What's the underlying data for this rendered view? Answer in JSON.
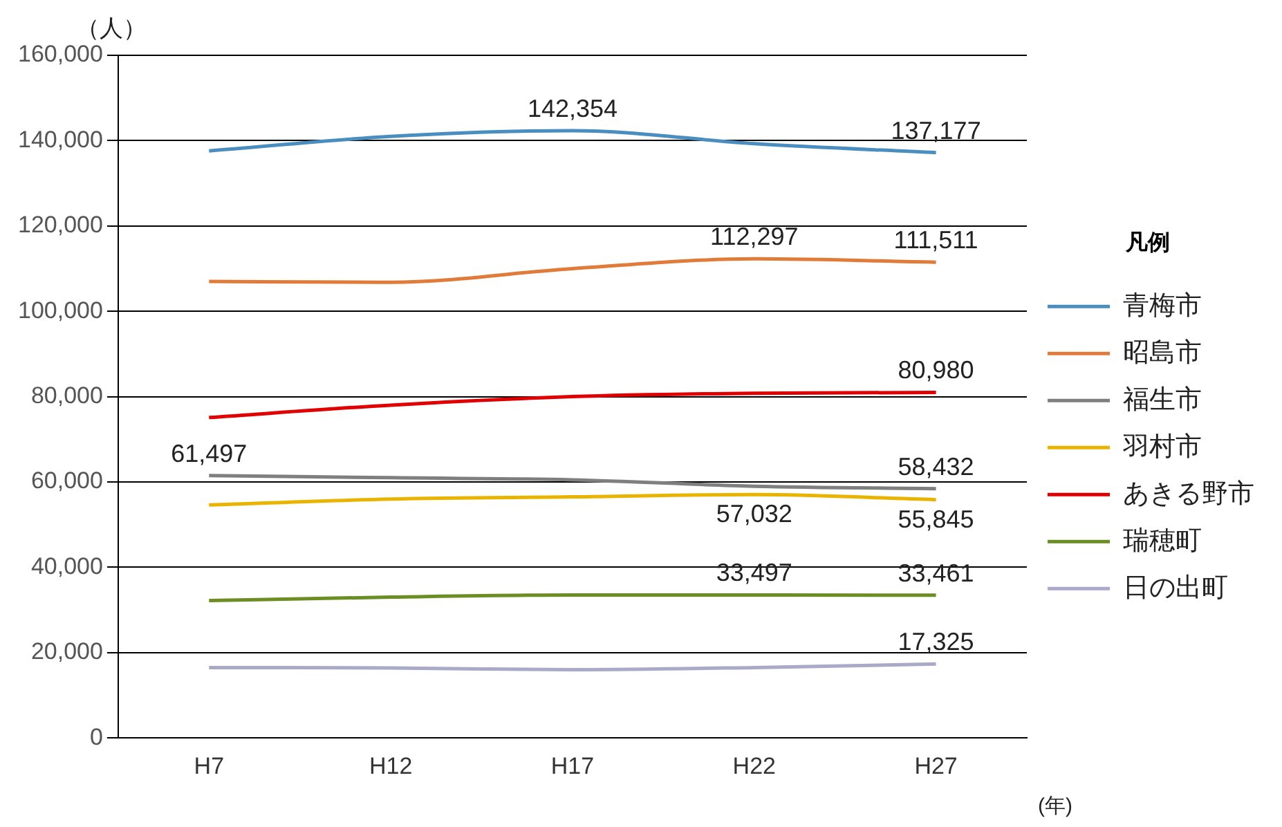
{
  "chart_data": {
    "type": "line",
    "ylabel": "（人）",
    "xlabel": "(年)",
    "legend_title": "凡例",
    "legend": "right",
    "grid": "y",
    "categories": [
      "H7",
      "H12",
      "H17",
      "H22",
      "H27"
    ],
    "ylim": [
      0,
      160000
    ],
    "yticks": [
      {
        "value": 0,
        "label": "0"
      },
      {
        "value": 20000,
        "label": "20,000"
      },
      {
        "value": 40000,
        "label": "40,000"
      },
      {
        "value": 60000,
        "label": "60,000"
      },
      {
        "value": 80000,
        "label": "80,000"
      },
      {
        "value": 100000,
        "label": "100,000"
      },
      {
        "value": 120000,
        "label": "120,000"
      },
      {
        "value": 140000,
        "label": "140,000"
      },
      {
        "value": 160000,
        "label": "160,000"
      }
    ],
    "series": [
      {
        "name": "青梅市",
        "color": "#4a8ebf",
        "values": [
          137600,
          141000,
          142354,
          139300,
          137177
        ],
        "value_labels": [
          null,
          null,
          "142,354",
          null,
          "137,177"
        ]
      },
      {
        "name": "昭島市",
        "color": "#e07b39",
        "values": [
          107000,
          106800,
          110000,
          112297,
          111511
        ],
        "value_labels": [
          null,
          null,
          null,
          "112,297",
          "111,511"
        ]
      },
      {
        "name": "福生市",
        "color": "#7f7f7f",
        "values": [
          61497,
          61000,
          60500,
          59000,
          58432
        ],
        "value_labels": [
          "61,497",
          null,
          null,
          null,
          "58,432"
        ]
      },
      {
        "name": "羽村市",
        "color": "#e8b400",
        "values": [
          54600,
          56000,
          56500,
          57032,
          55845
        ],
        "value_labels": [
          null,
          null,
          null,
          "57,032",
          "55,845"
        ]
      },
      {
        "name": "あきる野市",
        "color": "#e00000",
        "values": [
          75100,
          78000,
          80000,
          80800,
          80980
        ],
        "value_labels": [
          null,
          null,
          null,
          null,
          "80,980"
        ]
      },
      {
        "name": "瑞穂町",
        "color": "#6b8e23",
        "values": [
          32200,
          33000,
          33500,
          33497,
          33461
        ],
        "value_labels": [
          null,
          null,
          null,
          "33,497",
          "33,461"
        ]
      },
      {
        "name": "日の出町",
        "color": "#a9a9c8",
        "values": [
          16500,
          16400,
          16000,
          16500,
          17325
        ],
        "value_labels": [
          null,
          null,
          null,
          null,
          "17,325"
        ]
      }
    ]
  }
}
